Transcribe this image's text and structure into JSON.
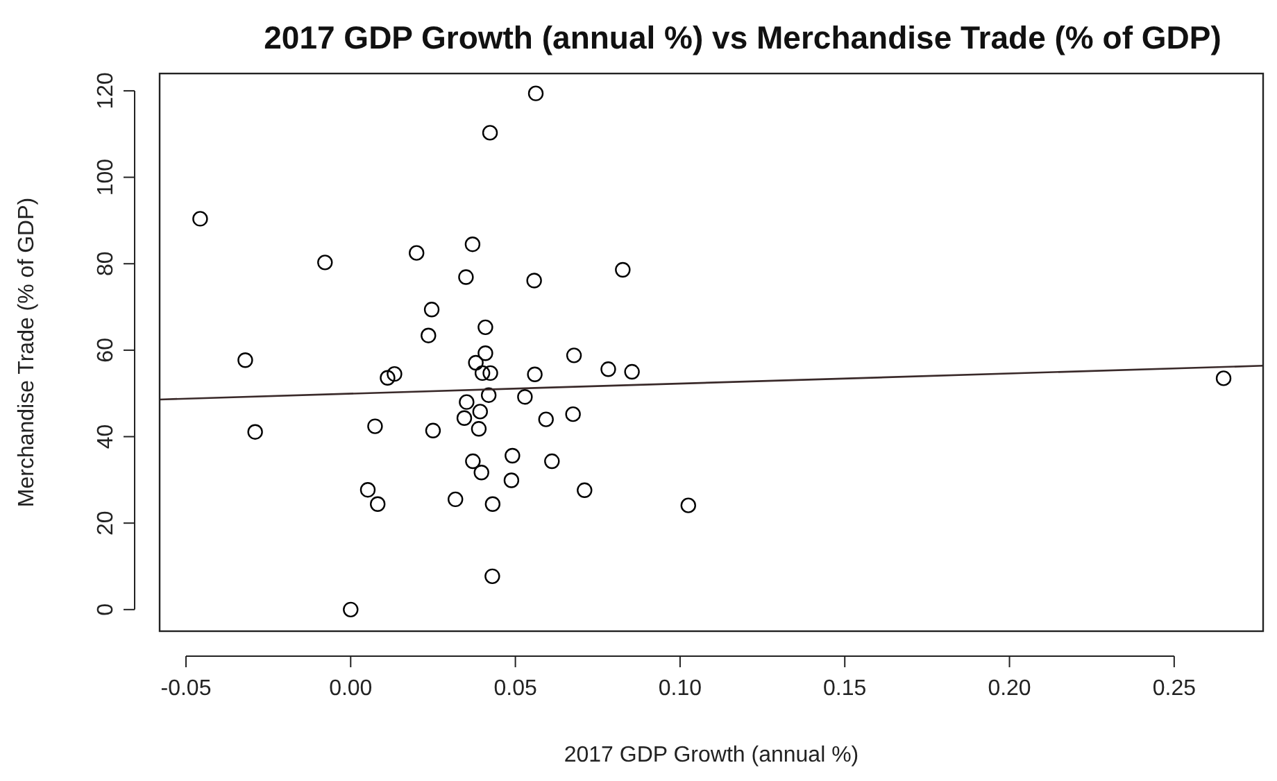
{
  "chart_data": {
    "type": "scatter",
    "title": "2017 GDP Growth (annual %) vs Merchandise Trade (% of GDP)",
    "xlabel": "2017 GDP Growth (annual %)",
    "ylabel": "Merchandise Trade (% of GDP)",
    "xlim": [
      -0.058,
      0.277
    ],
    "ylim": [
      -5,
      124
    ],
    "xticks": [
      {
        "value": -0.05,
        "label": "-0.05"
      },
      {
        "value": 0,
        "label": "0.00"
      },
      {
        "value": 0.05,
        "label": "0.05"
      },
      {
        "value": 0.1,
        "label": "0.10"
      },
      {
        "value": 0.15,
        "label": "0.15"
      },
      {
        "value": 0.2,
        "label": "0.20"
      },
      {
        "value": 0.25,
        "label": "0.25"
      }
    ],
    "yticks": [
      0,
      20,
      40,
      60,
      80,
      100,
      120
    ],
    "grid": false,
    "marker": "circle",
    "series": [
      {
        "color": "#000000",
        "x": [
          -0.0457,
          -0.0078,
          -0.032,
          -0.029,
          0.0,
          0.02,
          0.037,
          0.035,
          0.0557,
          0.0826,
          0.0562,
          0.0423,
          0.0246,
          0.0236,
          0.0409,
          0.0409,
          0.038,
          0.04,
          0.0424,
          0.0112,
          0.0133,
          0.0559,
          0.0678,
          0.0782,
          0.0854,
          0.0419,
          0.0529,
          0.0352,
          0.0393,
          0.0345,
          0.0389,
          0.0593,
          0.0675,
          0.0074,
          0.025,
          0.0491,
          0.0611,
          0.0371,
          0.0397,
          0.0488,
          0.0052,
          0.0082,
          0.0318,
          0.0431,
          0.071,
          0.1025,
          0.043,
          0.265
        ],
        "values": [
          90.4,
          80.3,
          57.7,
          41.1,
          0,
          82.5,
          84.5,
          76.9,
          76.1,
          78.6,
          119.4,
          110.3,
          69.4,
          63.4,
          65.3,
          59.3,
          57.1,
          54.7,
          54.7,
          53.6,
          54.5,
          54.4,
          58.8,
          55.6,
          55.0,
          49.6,
          49.2,
          48.0,
          45.8,
          44.3,
          41.8,
          44.0,
          45.2,
          42.4,
          41.4,
          35.6,
          34.3,
          34.3,
          31.7,
          29.9,
          27.7,
          24.4,
          25.5,
          24.4,
          27.6,
          24.1,
          7.7,
          53.5
        ]
      },
      {
        "type": "line",
        "color": "#3a2a2a",
        "x": [
          -0.058,
          0.277
        ],
        "values": [
          48.6,
          56.4
        ],
        "marker": "none"
      }
    ]
  }
}
